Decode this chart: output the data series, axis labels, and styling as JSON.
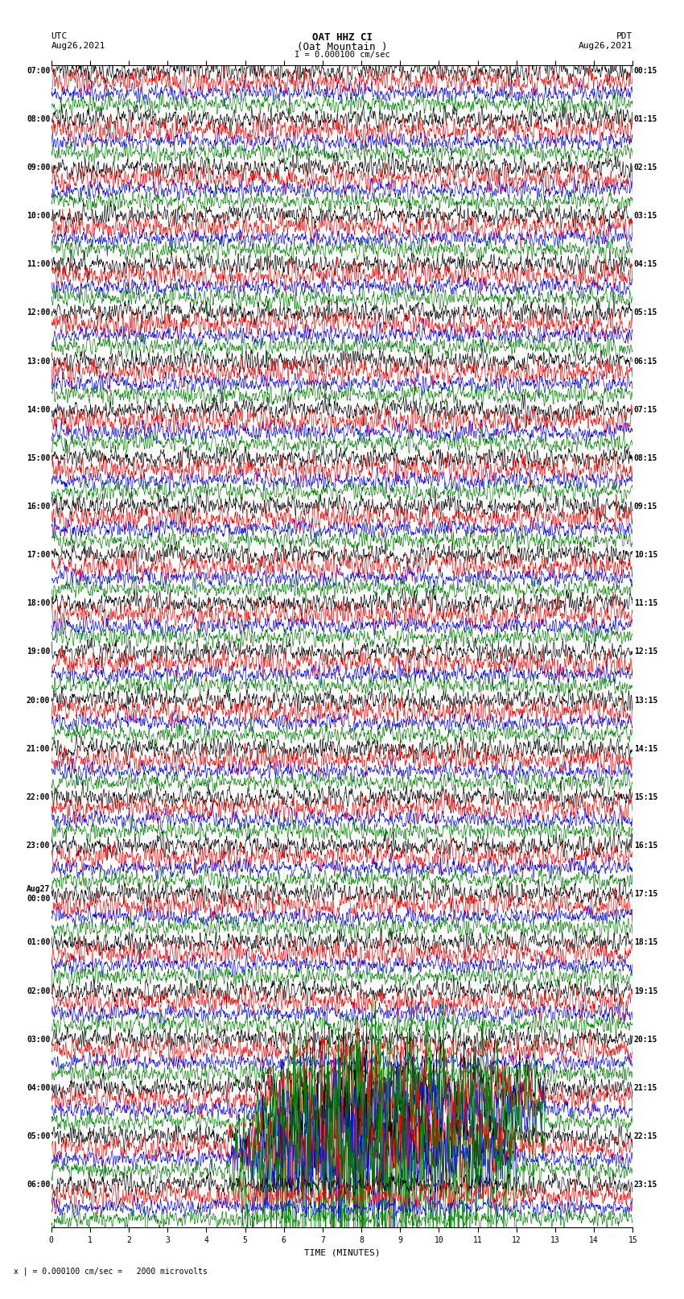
{
  "title_line1": "OAT HHZ CI",
  "title_line2": "(Oat Mountain )",
  "scale_label": "I = 0.000100 cm/sec",
  "left_label_top": "UTC",
  "left_label_date": "Aug26,2021",
  "right_label_top": "PDT",
  "right_label_date": "Aug26,2021",
  "xlabel": "TIME (MINUTES)",
  "bottom_note": "x | = 0.000100 cm/sec =   2000 microvolts",
  "background_color": "#ffffff",
  "trace_colors": [
    "#000000",
    "#ff0000",
    "#0000ff",
    "#008000"
  ],
  "tick_label_fontsize": 7,
  "title_fontsize": 9,
  "header_fontsize": 8,
  "row_label_fontsize": 7,
  "xlabel_fontsize": 8,
  "left_utc_times": [
    "07:00",
    "08:00",
    "09:00",
    "10:00",
    "11:00",
    "12:00",
    "13:00",
    "14:00",
    "15:00",
    "16:00",
    "17:00",
    "18:00",
    "19:00",
    "20:00",
    "21:00",
    "22:00",
    "23:00",
    "Aug27\n00:00",
    "01:00",
    "02:00",
    "03:00",
    "04:00",
    "05:00",
    "06:00"
  ],
  "right_pdt_times": [
    "00:15",
    "01:15",
    "02:15",
    "03:15",
    "04:15",
    "05:15",
    "06:15",
    "07:15",
    "08:15",
    "09:15",
    "10:15",
    "11:15",
    "12:15",
    "13:15",
    "14:15",
    "15:15",
    "16:15",
    "17:15",
    "18:15",
    "19:15",
    "20:15",
    "21:15",
    "22:15",
    "23:15"
  ],
  "num_rows": 24,
  "traces_per_row": 4,
  "xmin": 0,
  "xmax": 15,
  "noise_seed": 42,
  "big_event_rows": [
    21,
    22
  ],
  "big_event_amplitude_green": 12.0,
  "big_event_amplitude_others": 5.0
}
